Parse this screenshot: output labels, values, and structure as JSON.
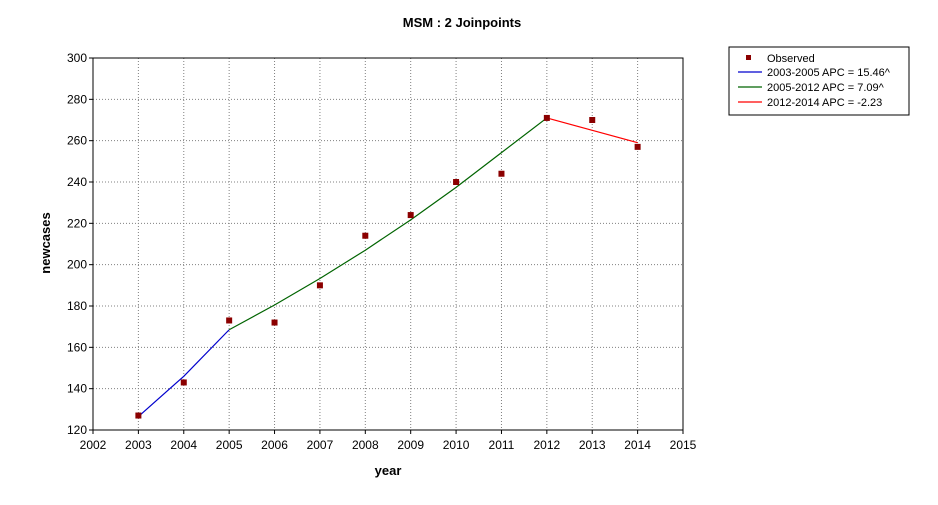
{
  "chart_data": {
    "type": "scatter",
    "title": "MSM : 2 Joinpoints",
    "xlabel": "year",
    "ylabel": "newcases",
    "xlim": [
      2002,
      2015
    ],
    "ylim": [
      120,
      300
    ],
    "xticks": [
      2002,
      2003,
      2004,
      2005,
      2006,
      2007,
      2008,
      2009,
      2010,
      2011,
      2012,
      2013,
      2014,
      2015
    ],
    "yticks": [
      120,
      140,
      160,
      180,
      200,
      220,
      240,
      260,
      280,
      300
    ],
    "grid": true,
    "legend_position": "top-right outside",
    "observed": {
      "name": "Observed",
      "color": "#8b0000",
      "x": [
        2003,
        2004,
        2005,
        2006,
        2007,
        2008,
        2009,
        2010,
        2011,
        2012,
        2013,
        2014
      ],
      "y": [
        127,
        143,
        173,
        172,
        190,
        214,
        224,
        240,
        244,
        271,
        270,
        257
      ]
    },
    "segments": [
      {
        "name": "2003-2005 APC  = 15.46^",
        "color": "#0000cd",
        "x": [
          2003,
          2004,
          2005
        ],
        "y": [
          126.5,
          146.0,
          168.5
        ]
      },
      {
        "name": "2005-2012 APC  =  7.09^",
        "color": "#006400",
        "x": [
          2005,
          2006,
          2007,
          2008,
          2009,
          2010,
          2011,
          2012
        ],
        "y": [
          168.5,
          180.5,
          193.3,
          207.0,
          221.7,
          237.4,
          254.2,
          271.0
        ]
      },
      {
        "name": "2012-2014 APC  = -2.23",
        "color": "#ff0000",
        "x": [
          2012,
          2013,
          2014
        ],
        "y": [
          271.0,
          265.0,
          259.0
        ]
      }
    ]
  }
}
